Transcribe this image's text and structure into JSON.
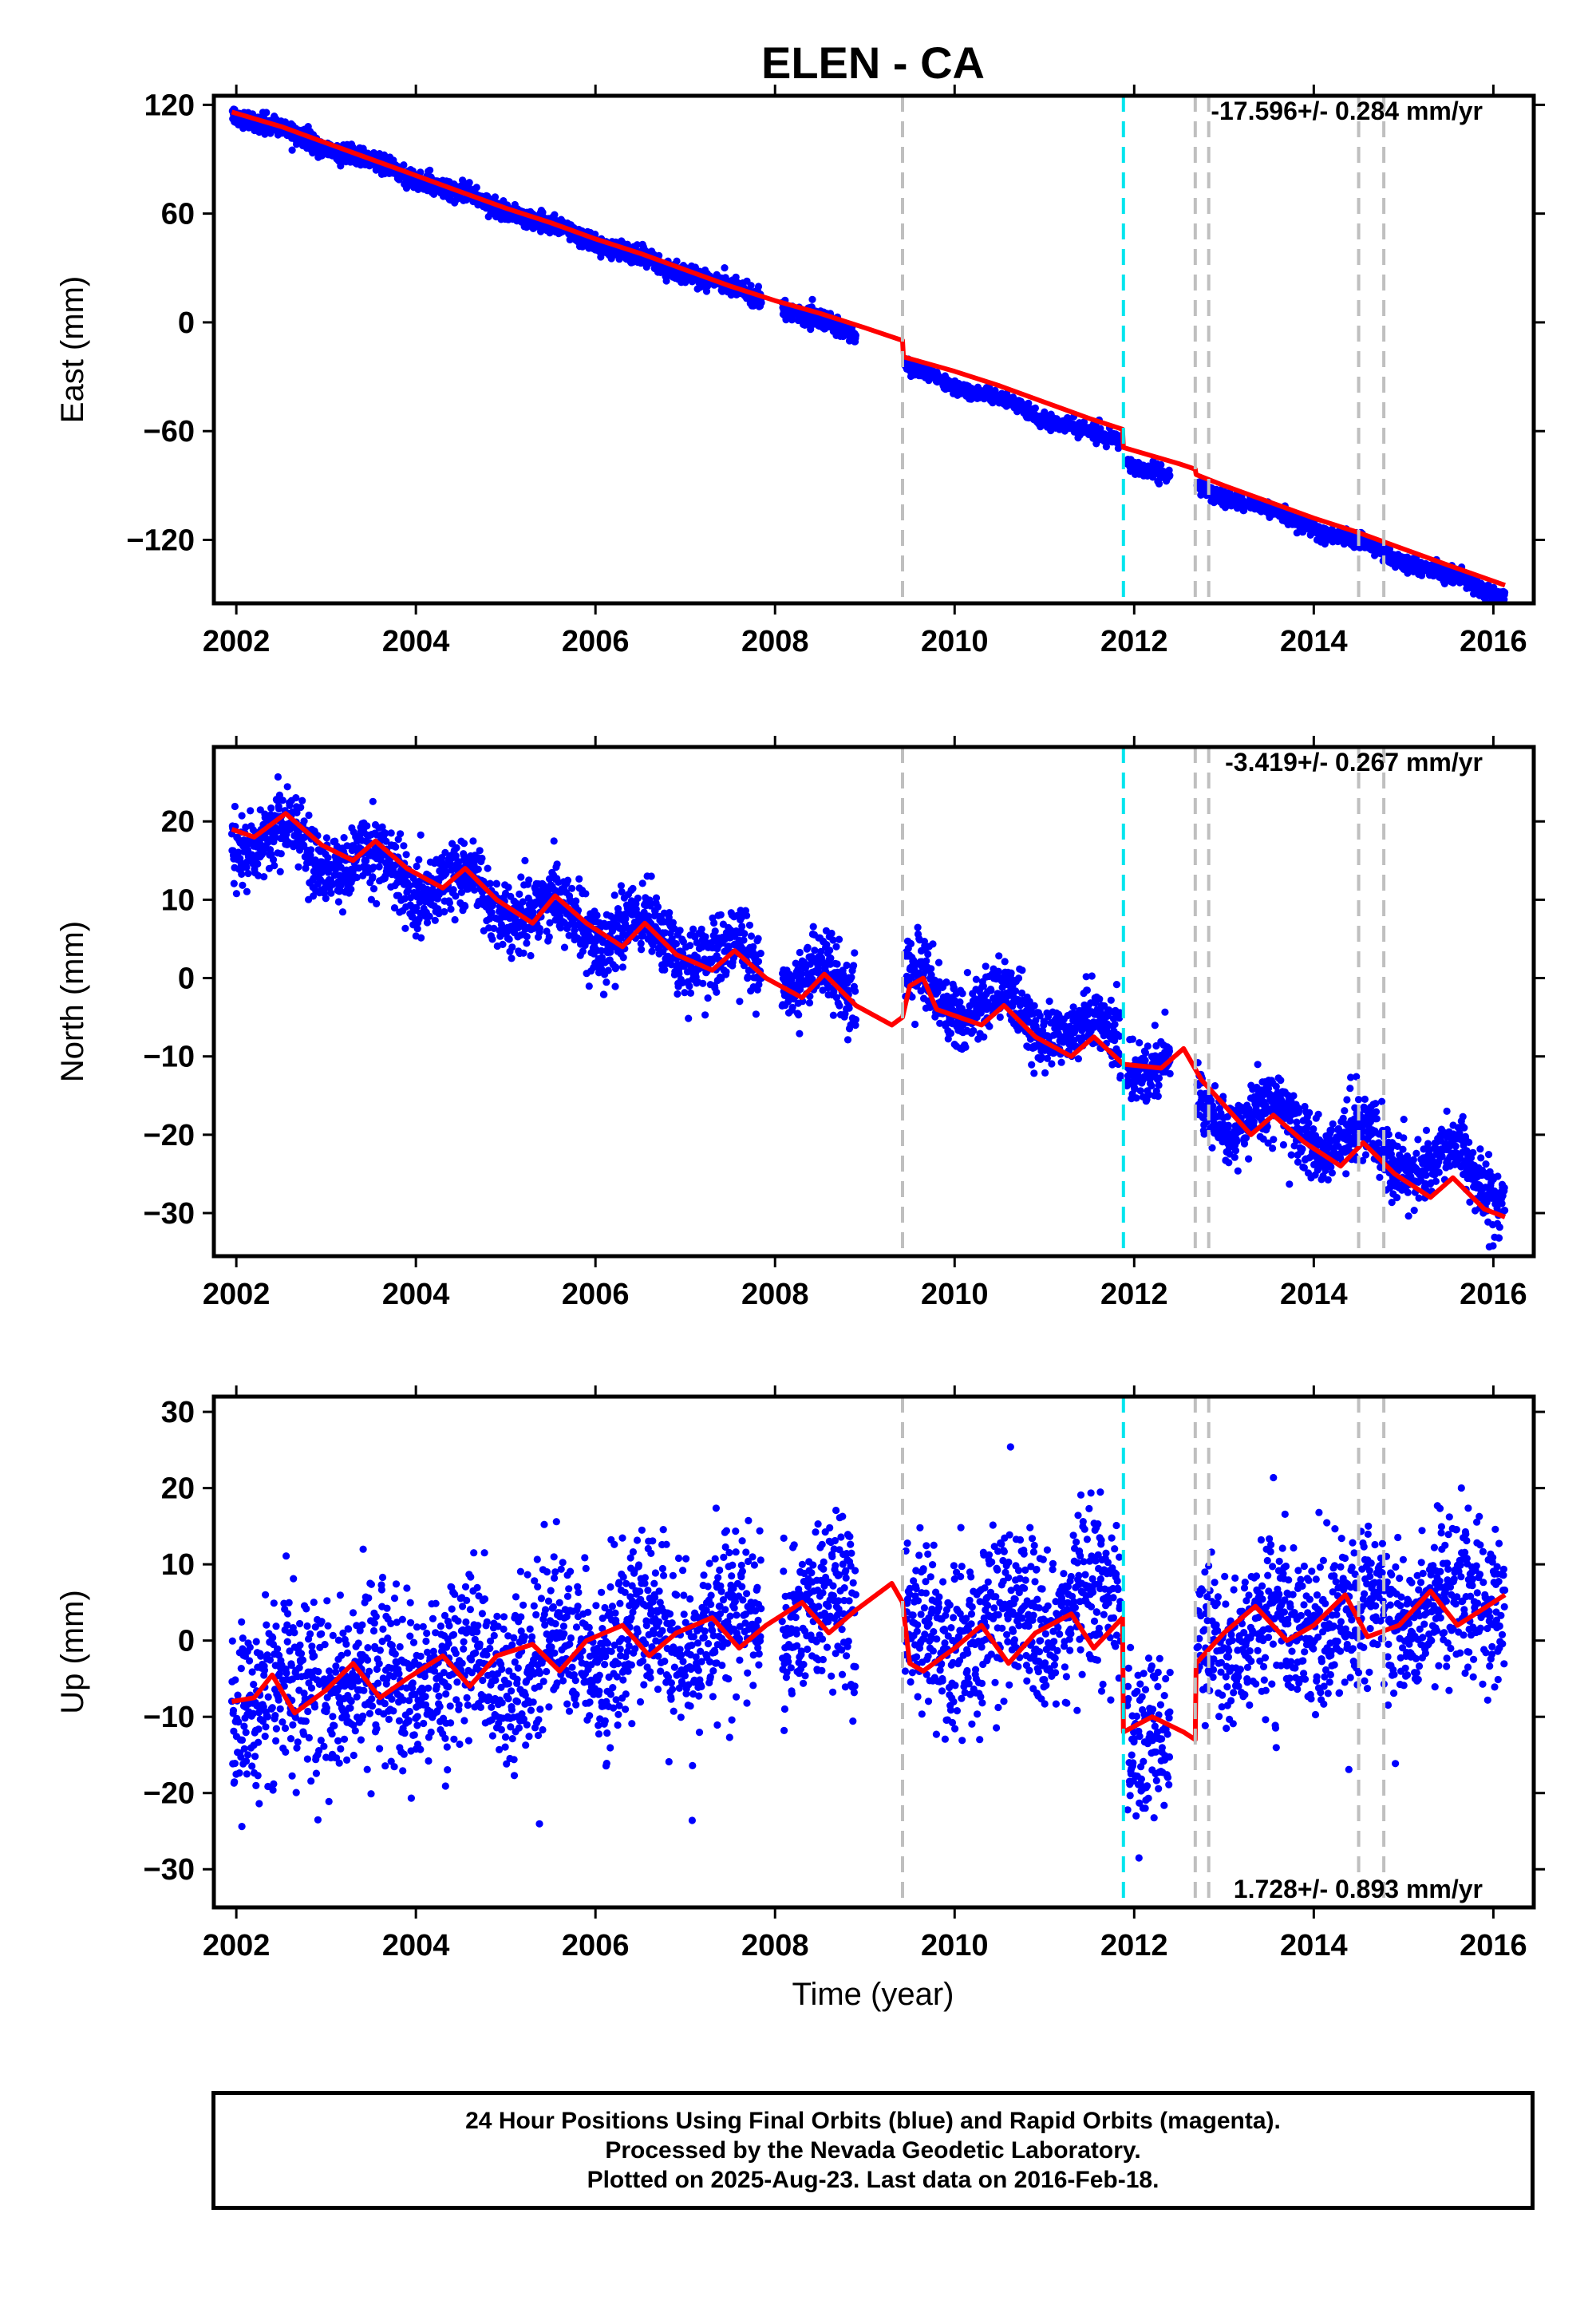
{
  "title": "ELEN - CA",
  "xlabel": "Time (year)",
  "footer": {
    "line1": "24 Hour Positions Using Final Orbits (blue) and Rapid Orbits (magenta).",
    "line2": "Processed by the Nevada Geodetic Laboratory.",
    "line3": "Plotted on 2025-Aug-23. Last data on 2016-Feb-18."
  },
  "colors": {
    "points": "#0000ff",
    "model": "#ff0000",
    "equipment_change": "#bfbfbf",
    "earthquake": "#00e5ee"
  },
  "chart_data": [
    {
      "type": "scatter",
      "ylabel": "East (mm)",
      "rate_label": "-17.596+/- 0.284 mm/yr",
      "xlim": [
        2001.75,
        2016.45
      ],
      "ylim": [
        -155,
        125
      ],
      "xticks": [
        2002,
        2004,
        2006,
        2008,
        2010,
        2012,
        2014,
        2016
      ],
      "yticks": [
        -120,
        -60,
        0,
        60,
        120
      ],
      "gray_lines": [
        2009.42,
        2012.68,
        2012.83,
        2014.5,
        2014.78
      ],
      "cyan_lines": [
        2011.88
      ],
      "model": {
        "x": [
          2001.95,
          2002.5,
          2003.0,
          2003.5,
          2004.0,
          2004.5,
          2005.0,
          2005.5,
          2006.0,
          2006.5,
          2007.0,
          2007.5,
          2008.0,
          2008.5,
          2009.0,
          2009.42,
          2009.43,
          2010.0,
          2010.5,
          2011.0,
          2011.5,
          2011.87,
          2011.88,
          2012.5,
          2012.68,
          2012.69,
          2013.0,
          2013.5,
          2014.0,
          2014.5,
          2015.0,
          2015.5,
          2016.13
        ],
        "y": [
          116,
          108,
          99,
          90,
          81,
          72,
          63,
          55,
          46,
          38,
          29,
          20,
          12,
          5,
          -3,
          -10,
          -19,
          -27,
          -35,
          -44,
          -53,
          -59,
          -69,
          -78,
          -81,
          -84,
          -90,
          -99,
          -108,
          -116,
          -125,
          -134,
          -145
        ]
      },
      "series": [
        {
          "name": "",
          "start": 2001.95,
          "end": 2007.85,
          "a": 116,
          "b": -17.6,
          "c": 0,
          "amp": 1.5,
          "noise": 2.5,
          "out": 0
        },
        {
          "name": "",
          "start": 2008.08,
          "end": 2008.9,
          "a": 116,
          "b": -17.6,
          "c": 0,
          "amp": 1.5,
          "noise": 2.5,
          "out": 0
        },
        {
          "name": "",
          "start": 2009.45,
          "end": 2011.85,
          "a": 116,
          "b": -17.6,
          "c": -8.5,
          "amp": 1.5,
          "noise": 2.0,
          "out": 0
        },
        {
          "name": "",
          "start": 2011.92,
          "end": 2012.4,
          "a": 116,
          "b": -17.6,
          "c": -17,
          "amp": 1.5,
          "noise": 2.0,
          "out": 0
        },
        {
          "name": "",
          "start": 2012.7,
          "end": 2016.13,
          "a": 116,
          "b": -17.6,
          "c": -17,
          "amp": 1.5,
          "noise": 2.0,
          "out": 0
        }
      ]
    },
    {
      "type": "scatter",
      "ylabel": "North (mm)",
      "rate_label": "-3.419+/- 0.267 mm/yr",
      "xlim": [
        2001.75,
        2016.45
      ],
      "ylim": [
        -35.5,
        29.5
      ],
      "xticks": [
        2002,
        2004,
        2006,
        2008,
        2010,
        2012,
        2014,
        2016
      ],
      "yticks": [
        -30,
        -20,
        -10,
        0,
        10,
        20
      ],
      "gray_lines": [
        2009.42,
        2012.68,
        2012.83,
        2014.5,
        2014.78
      ],
      "cyan_lines": [
        2011.88
      ],
      "model": {
        "x": [
          2001.95,
          2002.2,
          2002.55,
          2002.95,
          2003.3,
          2003.55,
          2003.9,
          2004.3,
          2004.55,
          2004.9,
          2005.3,
          2005.55,
          2005.9,
          2006.3,
          2006.55,
          2006.9,
          2007.3,
          2007.55,
          2007.9,
          2008.3,
          2008.55,
          2008.9,
          2009.3,
          2009.42,
          2009.5,
          2009.65,
          2009.8,
          2010.3,
          2010.55,
          2010.9,
          2011.3,
          2011.55,
          2011.88,
          2012.3,
          2012.55,
          2012.75,
          2013.3,
          2013.55,
          2013.9,
          2014.3,
          2014.55,
          2014.9,
          2015.3,
          2015.55,
          2015.9,
          2016.13
        ],
        "y": [
          19,
          18,
          21,
          17,
          15,
          17.5,
          14,
          11.5,
          14,
          10,
          7,
          10.5,
          7,
          4,
          7,
          3,
          1,
          3.5,
          0,
          -2.5,
          0.5,
          -3.5,
          -6,
          -5,
          -1,
          0,
          -4,
          -6,
          -3.5,
          -7.5,
          -10,
          -7.5,
          -11,
          -11.5,
          -9,
          -13,
          -20,
          -17.5,
          -21,
          -24,
          -21,
          -25,
          -28,
          -25.5,
          -29.5,
          -30.5
        ]
      },
      "series": [
        {
          "name": "",
          "start": 2001.95,
          "end": 2007.85,
          "a": 19,
          "b": -3.0,
          "c": 0,
          "amp": 2.5,
          "noise": 2.3,
          "out": 0.01
        },
        {
          "name": "",
          "start": 2008.08,
          "end": 2008.9,
          "a": 19,
          "b": -3.0,
          "c": 0,
          "amp": 2.5,
          "noise": 2.3,
          "out": 0.01
        },
        {
          "name": "",
          "start": 2009.45,
          "end": 2011.85,
          "a": 19,
          "b": -3.0,
          "c": 2.5,
          "amp": 2.5,
          "noise": 2.0,
          "out": 0.01
        },
        {
          "name": "",
          "start": 2011.92,
          "end": 2012.4,
          "a": 19,
          "b": -3.0,
          "c": 1.5,
          "amp": 2.5,
          "noise": 2.0,
          "out": 0.01
        },
        {
          "name": "",
          "start": 2012.7,
          "end": 2016.13,
          "a": 19,
          "b": -3.0,
          "c": -2.5,
          "amp": 2.5,
          "noise": 2.0,
          "out": 0.01
        }
      ]
    },
    {
      "type": "scatter",
      "ylabel": "Up (mm)",
      "rate_label": "1.728+/- 0.893 mm/yr",
      "xlim": [
        2001.75,
        2016.45
      ],
      "ylim": [
        -35,
        32
      ],
      "xticks": [
        2002,
        2004,
        2006,
        2008,
        2010,
        2012,
        2014,
        2016
      ],
      "yticks": [
        -30,
        -20,
        -10,
        0,
        10,
        20,
        30
      ],
      "gray_lines": [
        2009.42,
        2012.68,
        2012.83,
        2014.5,
        2014.78
      ],
      "cyan_lines": [
        2011.88
      ],
      "model": {
        "x": [
          2001.95,
          2002.2,
          2002.4,
          2002.65,
          2003.0,
          2003.3,
          2003.6,
          2003.9,
          2004.3,
          2004.6,
          2004.9,
          2005.3,
          2005.6,
          2005.9,
          2006.3,
          2006.6,
          2006.9,
          2007.3,
          2007.6,
          2007.9,
          2008.3,
          2008.6,
          2008.9,
          2009.3,
          2009.42,
          2009.5,
          2009.65,
          2010.0,
          2010.3,
          2010.6,
          2010.9,
          2011.3,
          2011.55,
          2011.87,
          2011.88,
          2012.2,
          2012.55,
          2012.68,
          2012.69,
          2013.0,
          2013.35,
          2013.7,
          2014.0,
          2014.35,
          2014.6,
          2014.95,
          2015.3,
          2015.6,
          2016.13
        ],
        "y": [
          -8,
          -7.5,
          -4.5,
          -9.5,
          -6.5,
          -3,
          -7.5,
          -5,
          -2,
          -6,
          -2,
          -0.5,
          -4,
          0,
          2,
          -2,
          1,
          3,
          -1,
          2,
          5,
          1,
          4,
          7.5,
          5,
          -3,
          -4,
          -1,
          2,
          -3,
          1,
          3.5,
          -1,
          3,
          -12,
          -10,
          -12,
          -13,
          -3,
          1,
          4.5,
          0,
          2,
          6,
          0.5,
          2,
          6.5,
          2,
          6
        ]
      },
      "series": [
        {
          "name": "",
          "start": 2001.95,
          "end": 2007.85,
          "a": -8,
          "b": 1.7,
          "c": 0,
          "amp": 2.5,
          "noise": 5.5,
          "out": 0.015
        },
        {
          "name": "",
          "start": 2008.08,
          "end": 2008.9,
          "a": -8,
          "b": 1.7,
          "c": 0,
          "amp": 2.5,
          "noise": 5.5,
          "out": 0.015
        },
        {
          "name": "",
          "start": 2009.45,
          "end": 2011.85,
          "a": -8,
          "b": 1.7,
          "c": -4,
          "amp": 2.5,
          "noise": 5.5,
          "out": 0.015
        },
        {
          "name": "",
          "start": 2011.92,
          "end": 2012.4,
          "a": -8,
          "b": 1.7,
          "c": -21,
          "amp": 2.5,
          "noise": 6.0,
          "out": 0.02
        },
        {
          "name": "",
          "start": 2012.7,
          "end": 2016.13,
          "a": -8,
          "b": 1.7,
          "c": -10,
          "amp": 2.5,
          "noise": 5.0,
          "out": 0.015
        }
      ]
    }
  ]
}
